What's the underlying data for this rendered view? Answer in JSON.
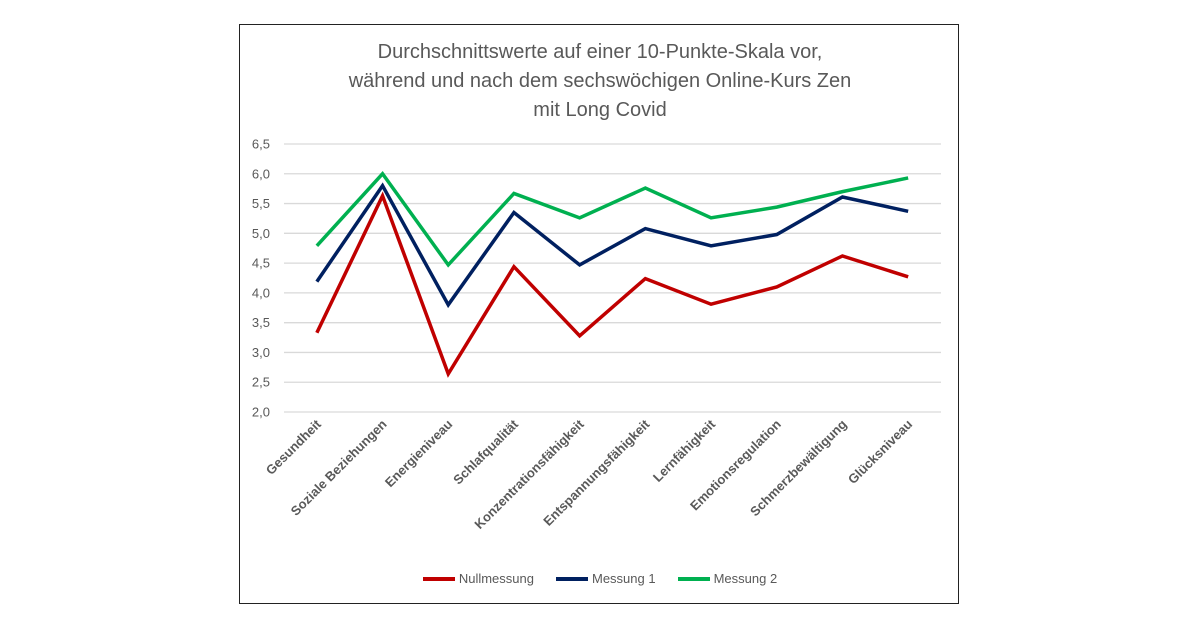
{
  "chart_data": {
    "type": "line",
    "title_lines": [
      "Durchschnittswerte auf einer 10-Punkte-Skala vor,",
      "während und nach dem sechswöchigen Online-Kurs Zen",
      "mit Long Covid"
    ],
    "categories": [
      "Gesundheit",
      "Soziale Beziehungen",
      "Energieniveau",
      "Schlafqualität",
      "Konzentrationsfähigkeit",
      "Entspannungsfähigkeit",
      "Lernfähigkeit",
      "Emotionsregulation",
      "Schmerzbewältigung",
      "Glücksniveau"
    ],
    "ylim": [
      2.0,
      6.5
    ],
    "yticks": [
      "2,0",
      "2,5",
      "3,0",
      "3,5",
      "4,0",
      "4,5",
      "5,0",
      "5,5",
      "6,0",
      "6,5"
    ],
    "grid": true,
    "legend_position": "bottom",
    "series": [
      {
        "name": "Nullmessung",
        "color": "#C00000",
        "values": [
          3.33,
          5.63,
          2.64,
          4.44,
          3.28,
          4.24,
          3.81,
          4.1,
          4.62,
          4.27
        ]
      },
      {
        "name": "Messung 1",
        "color": "#002060",
        "values": [
          4.19,
          5.8,
          3.8,
          5.35,
          4.47,
          5.08,
          4.79,
          4.98,
          5.61,
          5.37
        ]
      },
      {
        "name": "Messung 2",
        "color": "#00B050",
        "values": [
          4.79,
          6.0,
          4.47,
          5.67,
          5.26,
          5.76,
          5.26,
          5.44,
          5.7,
          5.93
        ]
      }
    ]
  }
}
